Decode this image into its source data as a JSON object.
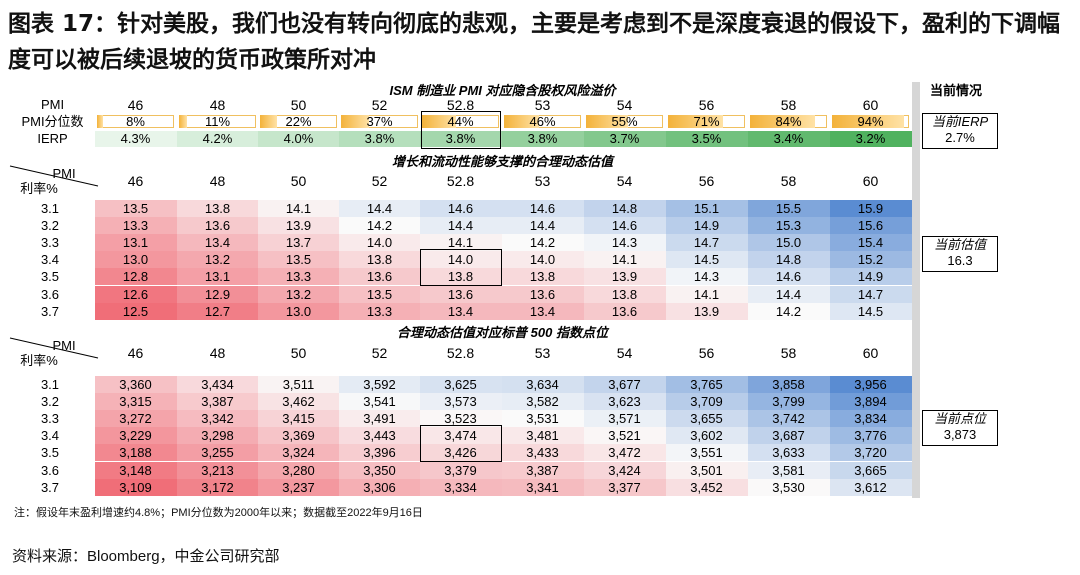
{
  "title": "图表 17：针对美股，我们也没有转向彻底的悲观，主要是考虑到不是深度衰退的假设下，盈利的下调幅度可以被后续退坡的货币政策所对冲",
  "ism": {
    "section_title": "ISM 制造业 PMI 对应隐含股权风险溢价",
    "row_labels": [
      "PMI",
      "PMI分位数",
      "IERP"
    ],
    "pmi": [
      "46",
      "48",
      "50",
      "52",
      "52.8",
      "53",
      "54",
      "56",
      "58",
      "60"
    ],
    "percentile": [
      "8%",
      "11%",
      "22%",
      "37%",
      "44%",
      "46%",
      "55%",
      "71%",
      "84%",
      "94%"
    ],
    "percentile_values": [
      8,
      11,
      22,
      37,
      44,
      46,
      55,
      71,
      84,
      94
    ],
    "ierp": [
      "4.3%",
      "4.2%",
      "4.0%",
      "3.8%",
      "3.8%",
      "3.8%",
      "3.7%",
      "3.5%",
      "3.4%",
      "3.2%"
    ]
  },
  "current": {
    "header": "当前情况",
    "ierp_label": "当前IERP",
    "ierp_value": "2.7%",
    "valuation_label": "当前估值",
    "valuation_value": "16.3",
    "index_label": "当前点位",
    "index_value": "3,873"
  },
  "valuation": {
    "section_title": "增长和流动性能够支撑的合理动态估值",
    "corner_pmi": "PMI",
    "corner_rate": "利率%",
    "cols": [
      "46",
      "48",
      "50",
      "52",
      "52.8",
      "53",
      "54",
      "56",
      "58",
      "60"
    ],
    "rates": [
      "3.1",
      "3.2",
      "3.3",
      "3.4",
      "3.5",
      "3.6",
      "3.7"
    ],
    "rows": [
      [
        "13.5",
        "13.8",
        "14.1",
        "14.4",
        "14.6",
        "14.6",
        "14.8",
        "15.1",
        "15.5",
        "15.9"
      ],
      [
        "13.3",
        "13.6",
        "13.9",
        "14.2",
        "14.4",
        "14.4",
        "14.6",
        "14.9",
        "15.3",
        "15.6"
      ],
      [
        "13.1",
        "13.4",
        "13.7",
        "14.0",
        "14.1",
        "14.2",
        "14.3",
        "14.7",
        "15.0",
        "15.4"
      ],
      [
        "13.0",
        "13.2",
        "13.5",
        "13.8",
        "14.0",
        "14.0",
        "14.1",
        "14.5",
        "14.8",
        "15.2"
      ],
      [
        "12.8",
        "13.1",
        "13.3",
        "13.6",
        "13.8",
        "13.8",
        "13.9",
        "14.3",
        "14.6",
        "14.9"
      ],
      [
        "12.6",
        "12.9",
        "13.2",
        "13.5",
        "13.6",
        "13.6",
        "13.8",
        "14.1",
        "14.4",
        "14.7"
      ],
      [
        "12.5",
        "12.7",
        "13.0",
        "13.3",
        "13.4",
        "13.4",
        "13.6",
        "13.9",
        "14.2",
        "14.5"
      ]
    ]
  },
  "index": {
    "section_title": "合理动态估值对应标普 500 指数点位",
    "corner_pmi": "PMI",
    "corner_rate": "利率%",
    "cols": [
      "46",
      "48",
      "50",
      "52",
      "52.8",
      "53",
      "54",
      "56",
      "58",
      "60"
    ],
    "rates": [
      "3.1",
      "3.2",
      "3.3",
      "3.4",
      "3.5",
      "3.6",
      "3.7"
    ],
    "rows": [
      [
        "3,360",
        "3,434",
        "3,511",
        "3,592",
        "3,625",
        "3,634",
        "3,677",
        "3,765",
        "3,858",
        "3,956"
      ],
      [
        "3,315",
        "3,387",
        "3,462",
        "3,541",
        "3,573",
        "3,582",
        "3,623",
        "3,709",
        "3,799",
        "3,894"
      ],
      [
        "3,272",
        "3,342",
        "3,415",
        "3,491",
        "3,523",
        "3,531",
        "3,571",
        "3,655",
        "3,742",
        "3,834"
      ],
      [
        "3,229",
        "3,298",
        "3,369",
        "3,443",
        "3,474",
        "3,481",
        "3,521",
        "3,602",
        "3,687",
        "3,776"
      ],
      [
        "3,188",
        "3,255",
        "3,324",
        "3,396",
        "3,426",
        "3,433",
        "3,472",
        "3,551",
        "3,633",
        "3,720"
      ],
      [
        "3,148",
        "3,213",
        "3,280",
        "3,350",
        "3,379",
        "3,387",
        "3,424",
        "3,501",
        "3,581",
        "3,665"
      ],
      [
        "3,109",
        "3,172",
        "3,237",
        "3,306",
        "3,334",
        "3,341",
        "3,377",
        "3,452",
        "3,530",
        "3,612"
      ]
    ]
  },
  "note": "注：假设年末盈利增速约4.8%；PMI分位数为2000年以来；数据截至2022年9月16日",
  "source": "资料来源：Bloomberg，中金公司研究部"
}
